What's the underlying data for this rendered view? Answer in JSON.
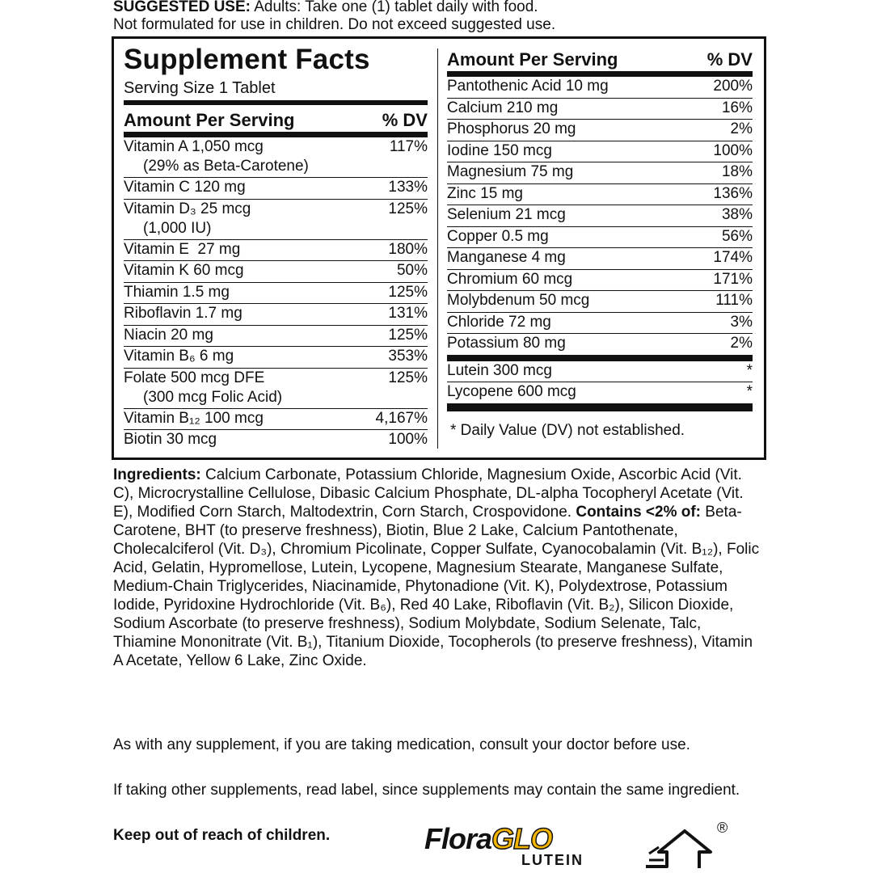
{
  "suggested_use": {
    "label": "SUGGESTED USE:",
    "text": "Adults: Take one (1) tablet daily with food.",
    "note": "Not formulated for use in children. Do not exceed suggested use."
  },
  "supplement_facts": {
    "title": "Supplement Facts",
    "serving_size": "Serving Size 1 Tablet",
    "left_header": [
      "Amount Per Serving",
      "% DV"
    ],
    "left_rows": [
      {
        "nutrient": "Vitamin A 1,050 mcg",
        "dv": "117%",
        "detail": "(29% as Beta-Carotene)"
      },
      {
        "nutrient": "Vitamin C 120 mg",
        "dv": "133%"
      },
      {
        "nutrient": "Vitamin D₃ 25 mcg",
        "dv": "125%",
        "detail": "(1,000 IU)"
      },
      {
        "nutrient": "Vitamin E  27 mg",
        "dv": "180%"
      },
      {
        "nutrient": "Vitamin K 60 mcg",
        "dv": "50%"
      },
      {
        "nutrient": "Thiamin 1.5 mg",
        "dv": "125%"
      },
      {
        "nutrient": "Riboflavin 1.7 mg",
        "dv": "131%"
      },
      {
        "nutrient": "Niacin 20 mg",
        "dv": "125%"
      },
      {
        "nutrient": "Vitamin B₆ 6 mg",
        "dv": "353%"
      },
      {
        "nutrient": "Folate 500 mcg DFE",
        "dv": "125%",
        "detail": "(300 mcg Folic Acid)"
      },
      {
        "nutrient": "Vitamin B₁₂ 100 mcg",
        "dv": "4,167%"
      },
      {
        "nutrient": "Biotin 30 mcg",
        "dv": "100%"
      }
    ],
    "right_header": [
      "Amount Per Serving",
      "% DV"
    ],
    "right_rows": [
      {
        "nutrient": "Pantothenic Acid 10 mg",
        "dv": "200%"
      },
      {
        "nutrient": "Calcium 210 mg",
        "dv": "16%"
      },
      {
        "nutrient": "Phosphorus 20 mg",
        "dv": "2%"
      },
      {
        "nutrient": "Iodine 150 mcg",
        "dv": "100%"
      },
      {
        "nutrient": "Magnesium 75 mg",
        "dv": "18%"
      },
      {
        "nutrient": "Zinc 15 mg",
        "dv": "136%"
      },
      {
        "nutrient": "Selenium 21 mcg",
        "dv": "38%"
      },
      {
        "nutrient": "Copper 0.5 mg",
        "dv": "56%"
      },
      {
        "nutrient": "Manganese 4 mg",
        "dv": "174%"
      },
      {
        "nutrient": "Chromium 60 mcg",
        "dv": "171%"
      },
      {
        "nutrient": "Molybdenum 50 mcg",
        "dv": "111%"
      },
      {
        "nutrient": "Chloride 72 mg",
        "dv": "3%"
      },
      {
        "nutrient": "Potassium 80 mg",
        "dv": "2%"
      }
    ],
    "other_rows": [
      {
        "nutrient": "Lutein 300 mcg",
        "dv": "*"
      },
      {
        "nutrient": "Lycopene 600 mcg",
        "dv": "*"
      }
    ],
    "footnote": "* Daily Value (DV) not established."
  },
  "ingredients": {
    "label": "Ingredients:",
    "text": "Calcium Carbonate, Potassium Chloride, Magnesium Oxide, Ascorbic Acid (Vit. C), Microcrystalline Cellulose, Dibasic Calcium Phosphate, DL-alpha Tocopheryl Acetate (Vit. E), Modified Corn Starch, Maltodextrin, Corn Starch, Crospovidone.",
    "contains_label": "Contains <2% of:",
    "contains_text": "Beta-Carotene, BHT (to preserve freshness), Biotin, Blue 2 Lake, Calcium Pantothenate, Cholecalciferol (Vit. D₃), Chromium Picolinate, Copper Sulfate, Cyanocobalamin (Vit. B₁₂), Folic Acid, Gelatin, Hypromellose, Lutein, Lycopene, Magnesium Stearate, Manganese Sulfate, Medium-Chain Triglycerides, Niacinamide, Phytonadione (Vit. K), Polydextrose, Potassium Iodide, Pyridoxine Hydrochloride (Vit. B₆), Red 40 Lake, Riboflavin (Vit. B₂), Silicon Dioxide, Sodium Ascorbate (to preserve freshness), Sodium Molybdate, Sodium Selenate, Talc, Thiamine Mononitrate (Vit. B₁), Titanium Dioxide, Tocopherols (to preserve freshness), Vitamin A Acetate, Yellow 6 Lake, Zinc Oxide."
  },
  "notes": [
    "As with any supplement, if you are taking medication, consult your doctor before use.",
    "If taking other supplements, read label, since supplements may contain the same ingredient."
  ],
  "warning": "Keep out of reach of children.",
  "logo": {
    "brand": "Flora",
    "mark": "GLO",
    "product": "LUTEIN",
    "registered": "®"
  }
}
